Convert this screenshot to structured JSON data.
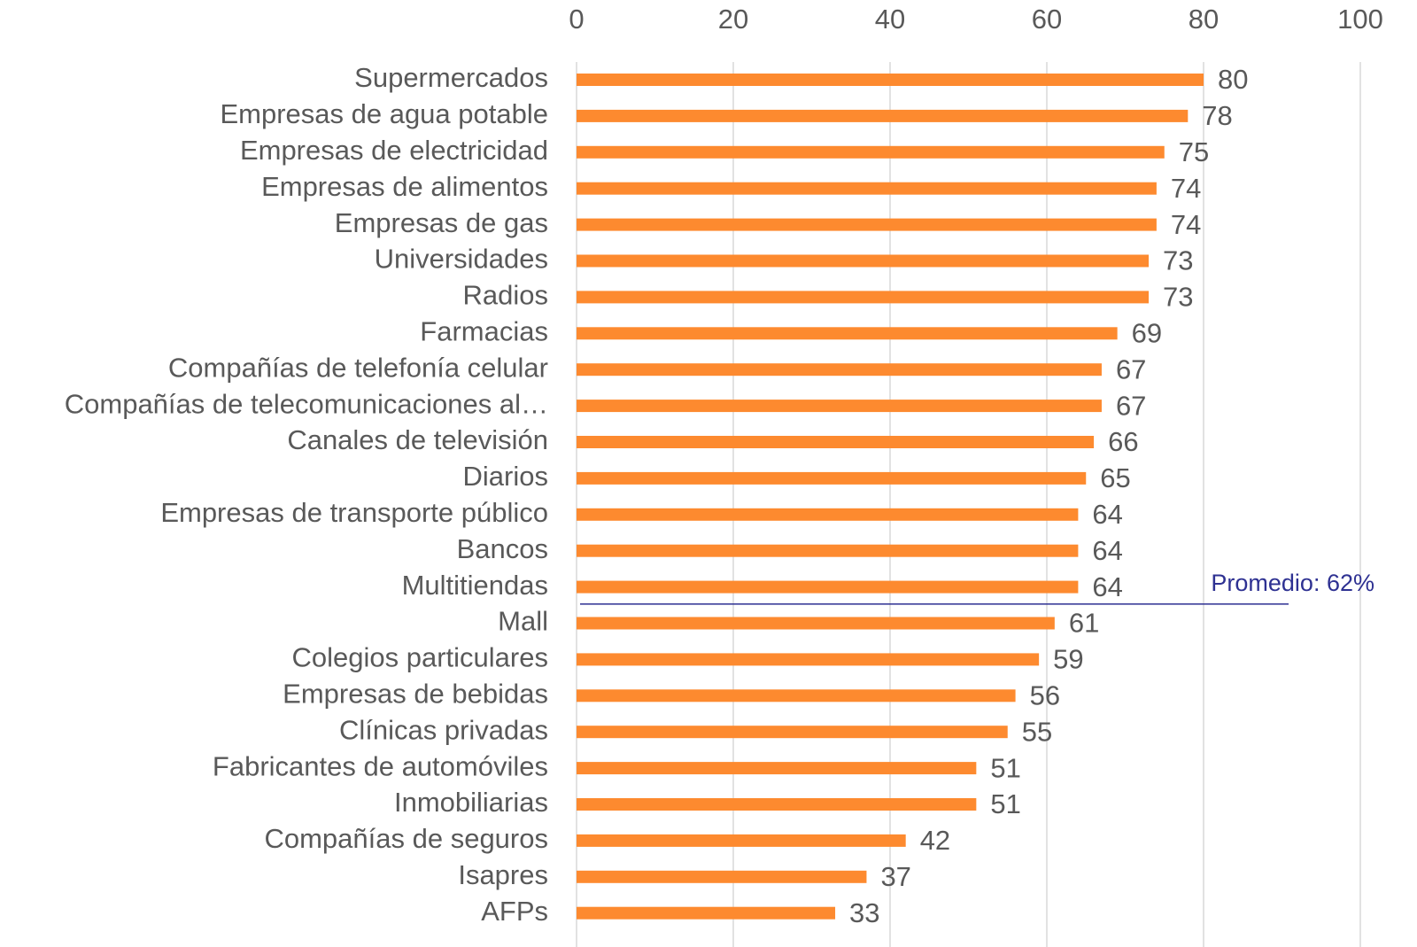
{
  "chart_data": {
    "type": "bar",
    "orientation": "horizontal",
    "categories": [
      "Supermercados",
      "Empresas de agua potable",
      "Empresas de electricidad",
      "Empresas de alimentos",
      "Empresas de gas",
      "Universidades",
      "Radios",
      "Farmacias",
      "Compañías de telefonía celular",
      "Compañías de telecomunicaciones al…",
      "Canales de televisión",
      "Diarios",
      "Empresas de transporte público",
      "Bancos",
      "Multitiendas",
      "Mall",
      "Colegios particulares",
      "Empresas de bebidas",
      "Clínicas privadas",
      "Fabricantes de automóviles",
      "Inmobiliarias",
      "Compañías de seguros",
      "Isapres",
      "AFPs"
    ],
    "values": [
      80,
      78,
      75,
      74,
      74,
      73,
      73,
      69,
      67,
      67,
      66,
      65,
      64,
      64,
      64,
      61,
      59,
      56,
      55,
      51,
      51,
      42,
      37,
      33
    ],
    "color": "#fd8a2f",
    "xlim": [
      0,
      100
    ],
    "xticks": [
      0,
      20,
      40,
      60,
      80,
      100
    ],
    "grid": true,
    "average": {
      "label": "Promedio: 62%",
      "value": 62,
      "color": "#2e3192"
    }
  }
}
